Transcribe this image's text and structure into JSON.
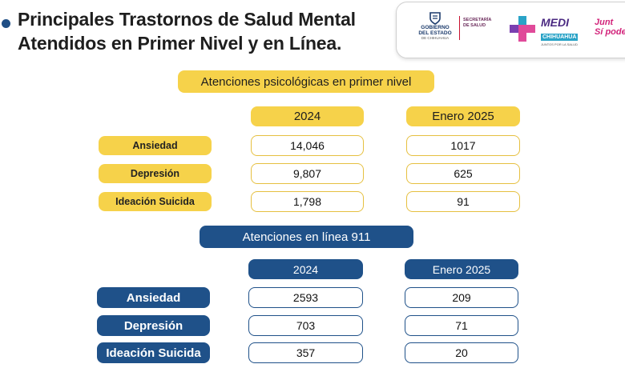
{
  "header": {
    "title_line1": "Principales Trastornos de Salud Mental",
    "title_line2": "Atendidos en Primer Nivel y en Línea."
  },
  "logos": {
    "gobierno_line1": "GOBIERNO",
    "gobierno_line2": "DEL ESTADO",
    "gobierno_line3": "DE CHIHUAHUA",
    "secretaria_line1": "SECRETARÍA",
    "secretaria_line2": "DE SALUD",
    "medi_line1": "MEDI",
    "medi_line2": "CHIHUAHUA",
    "medi_line3": "JUNTOS POR LA SALUD",
    "juntos_line1": "Junt",
    "juntos_line2": "Sí pode"
  },
  "primer_nivel": {
    "heading": "Atenciones psicológicas en primer nivel",
    "col1": "2024",
    "col2": "Enero 2025",
    "rows": [
      {
        "label": "Ansiedad",
        "v2024": "14,046",
        "v2025": "1017"
      },
      {
        "label": "Depresión",
        "v2024": "9,807",
        "v2025": "625"
      },
      {
        "label": "Ideación Suicida",
        "v2024": "1,798",
        "v2025": "91"
      }
    ]
  },
  "linea_911": {
    "heading": "Atenciones en línea 911",
    "col1": "2024",
    "col2": "Enero 2025",
    "rows": [
      {
        "label": "Ansiedad",
        "v2024": "2593",
        "v2025": "209"
      },
      {
        "label": "Depresión",
        "v2024": "703",
        "v2025": "71"
      },
      {
        "label": "Ideación Suicida",
        "v2024": "357",
        "v2025": "20"
      }
    ]
  },
  "colors": {
    "yellow": "#f6d24a",
    "navy": "#1f5189",
    "title": "#1e1e1e"
  }
}
